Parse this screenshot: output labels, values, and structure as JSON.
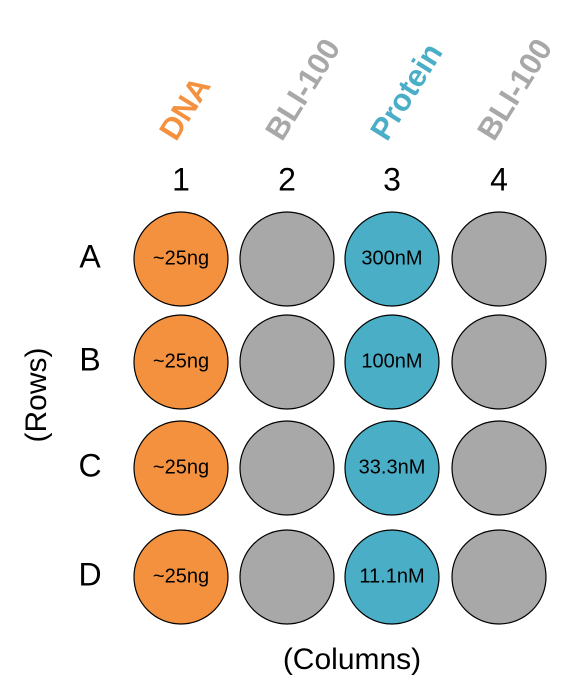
{
  "columns": [
    {
      "header": "DNA",
      "number": "1",
      "color": "#f4913f",
      "wells": [
        "~25ng",
        "~25ng",
        "~25ng",
        "~25ng"
      ]
    },
    {
      "header": "BLI-100",
      "number": "2",
      "color": "#a8a8a8"
    },
    {
      "header": "Protein",
      "number": "3",
      "color": "#4aaec6",
      "wells": [
        "300nM",
        "100nM",
        "33.3nM",
        "11.1nM"
      ]
    },
    {
      "header": "BLI-100",
      "number": "4",
      "color": "#a8a8a8"
    }
  ],
  "rows": [
    "A",
    "B",
    "C",
    "D"
  ],
  "row_axis_label": "(Rows)",
  "column_axis_label": "(Columns)"
}
